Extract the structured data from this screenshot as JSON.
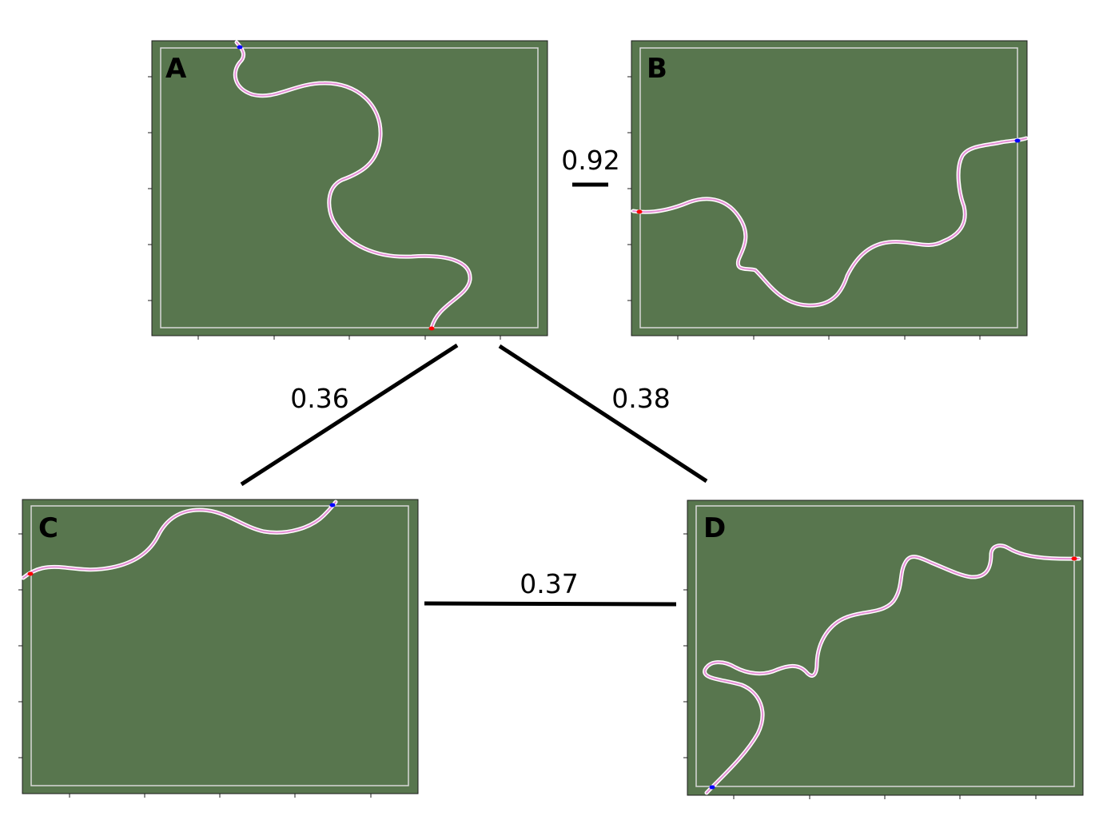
{
  "colors": {
    "field": "#58764e",
    "border": "#1c1c1c",
    "inner_frame": "#d9d9d9",
    "track_outer": "#ffffff",
    "track_inner": "#e58fd6",
    "start_marker": "#0000ff",
    "end_marker": "#ff0000",
    "edge": "#000000"
  },
  "panels": [
    {
      "id": "A",
      "label": "A"
    },
    {
      "id": "B",
      "label": "B"
    },
    {
      "id": "C",
      "label": "C"
    },
    {
      "id": "D",
      "label": "D"
    }
  ],
  "edges": [
    {
      "from": "A",
      "to": "B",
      "label": "0.92"
    },
    {
      "from": "A",
      "to": "C",
      "label": "0.36"
    },
    {
      "from": "A",
      "to": "D",
      "label": "0.38"
    },
    {
      "from": "C",
      "to": "D",
      "label": "0.37"
    }
  ]
}
